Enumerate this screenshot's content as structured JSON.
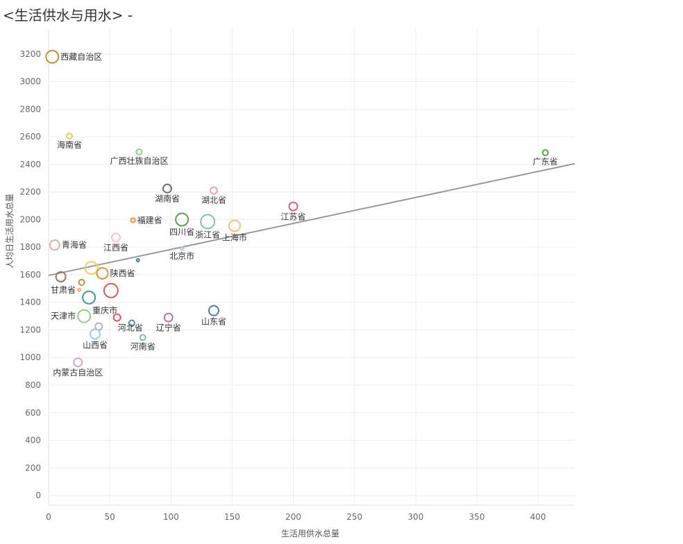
{
  "title": "<生活供水与用水> -",
  "chart_data": {
    "type": "scatter",
    "title": "<生活供水与用水> -",
    "xlabel": "生活用供水总量",
    "ylabel": "人均日生活用水总量",
    "xlim": [
      0,
      430
    ],
    "ylim": [
      -70,
      3380
    ],
    "xticks": [
      0,
      50,
      100,
      150,
      200,
      250,
      300,
      350,
      400
    ],
    "yticks": [
      0,
      200,
      400,
      600,
      800,
      1000,
      1200,
      1400,
      1600,
      1800,
      2000,
      2200,
      2400,
      2600,
      2800,
      3000,
      3200
    ],
    "grid": true,
    "trend_line": {
      "x0": 0,
      "y0": 1595,
      "x1": 430,
      "y1": 2405,
      "color": "#999999"
    },
    "points": [
      {
        "x": 3,
        "y": 3180,
        "size": 9,
        "color": "#b8962e",
        "label": "西藏自治区",
        "label_pos": "right"
      },
      {
        "x": 17,
        "y": 2605,
        "size": 4,
        "color": "#f2c94c",
        "label": "海南省",
        "label_pos": "below"
      },
      {
        "x": 74,
        "y": 2490,
        "size": 4,
        "color": "#8fcf7d",
        "label": "广西壮族自治区",
        "label_pos": "below"
      },
      {
        "x": 406,
        "y": 2485,
        "size": 4,
        "color": "#59a14f",
        "label": "广东省",
        "label_pos": "below"
      },
      {
        "x": 97,
        "y": 2225,
        "size": 6,
        "color": "#7a6a6a",
        "label": "湖南省",
        "label_pos": "below"
      },
      {
        "x": 135,
        "y": 2210,
        "size": 5,
        "color": "#f4a0a8",
        "label": "湖北省",
        "label_pos": "below"
      },
      {
        "x": 200,
        "y": 2095,
        "size": 6,
        "color": "#d4607a",
        "label": "江苏省",
        "label_pos": "below"
      },
      {
        "x": 69,
        "y": 1995,
        "size": 3,
        "color": "#f28e2b",
        "label": "福建省",
        "label_pos": "right"
      },
      {
        "x": 109,
        "y": 2000,
        "size": 9,
        "color": "#59a14f",
        "label": "四川省",
        "label_pos": "below"
      },
      {
        "x": 130,
        "y": 1985,
        "size": 10,
        "color": "#86bcb6",
        "label": "浙江省",
        "label_pos": "below"
      },
      {
        "x": 152,
        "y": 1955,
        "size": 8,
        "color": "#ffbe7d",
        "label": "上海市",
        "label_pos": "below"
      },
      {
        "x": 55,
        "y": 1870,
        "size": 6,
        "color": "#fabfd2",
        "label": "江西省",
        "label_pos": "below"
      },
      {
        "x": 5,
        "y": 1815,
        "size": 7,
        "color": "#d7b5a6",
        "label": "青海省",
        "label_pos": "right"
      },
      {
        "x": 109,
        "y": 1790,
        "size": 2,
        "color": "#a0cbe8",
        "label": "北京市",
        "label_pos": "below"
      },
      {
        "x": 73,
        "y": 1705,
        "size": 2,
        "color": "#4e79a7",
        "label": "",
        "label_pos": "none"
      },
      {
        "x": 35,
        "y": 1650,
        "size": 9,
        "color": "#f1ce63",
        "label": "",
        "label_pos": "none"
      },
      {
        "x": 44,
        "y": 1610,
        "size": 8,
        "color": "#f28e2b",
        "label": "陕西省",
        "label_pos": "right"
      },
      {
        "x": 10,
        "y": 1585,
        "size": 7,
        "color": "#9c755f",
        "label": "",
        "label_pos": "none"
      },
      {
        "x": 27,
        "y": 1545,
        "size": 4,
        "color": "#b8962e",
        "label": "",
        "label_pos": "none"
      },
      {
        "x": 25,
        "y": 1490,
        "size": 2,
        "color": "#f2b04c",
        "label": "甘肃省",
        "label_pos": "left"
      },
      {
        "x": 51,
        "y": 1485,
        "size": 10,
        "color": "#e15759",
        "label": "",
        "label_pos": "none"
      },
      {
        "x": 33,
        "y": 1435,
        "size": 9,
        "color": "#499894",
        "label": "重庆市",
        "label_pos": "belowright"
      },
      {
        "x": 135,
        "y": 1340,
        "size": 7,
        "color": "#4e79a7",
        "label": "山东省",
        "label_pos": "below"
      },
      {
        "x": 29,
        "y": 1300,
        "size": 9,
        "color": "#8cd17d",
        "label": "天津市",
        "label_pos": "left"
      },
      {
        "x": 56,
        "y": 1290,
        "size": 5,
        "color": "#e15759",
        "label": "河北省",
        "label_pos": "belowright"
      },
      {
        "x": 98,
        "y": 1290,
        "size": 6,
        "color": "#b07aa1",
        "label": "辽宁省",
        "label_pos": "below"
      },
      {
        "x": 68,
        "y": 1250,
        "size": 4,
        "color": "#499894",
        "label": "",
        "label_pos": "none"
      },
      {
        "x": 41,
        "y": 1225,
        "size": 5,
        "color": "#bab0ac",
        "label": "",
        "label_pos": "none"
      },
      {
        "x": 38,
        "y": 1170,
        "size": 7,
        "color": "#a0cbe8",
        "label": "山西省",
        "label_pos": "below"
      },
      {
        "x": 77,
        "y": 1145,
        "size": 4,
        "color": "#86bcb6",
        "label": "河南省",
        "label_pos": "below"
      },
      {
        "x": 24,
        "y": 965,
        "size": 6,
        "color": "#d4a6c8",
        "label": "内蒙古自治区",
        "label_pos": "below"
      }
    ]
  }
}
